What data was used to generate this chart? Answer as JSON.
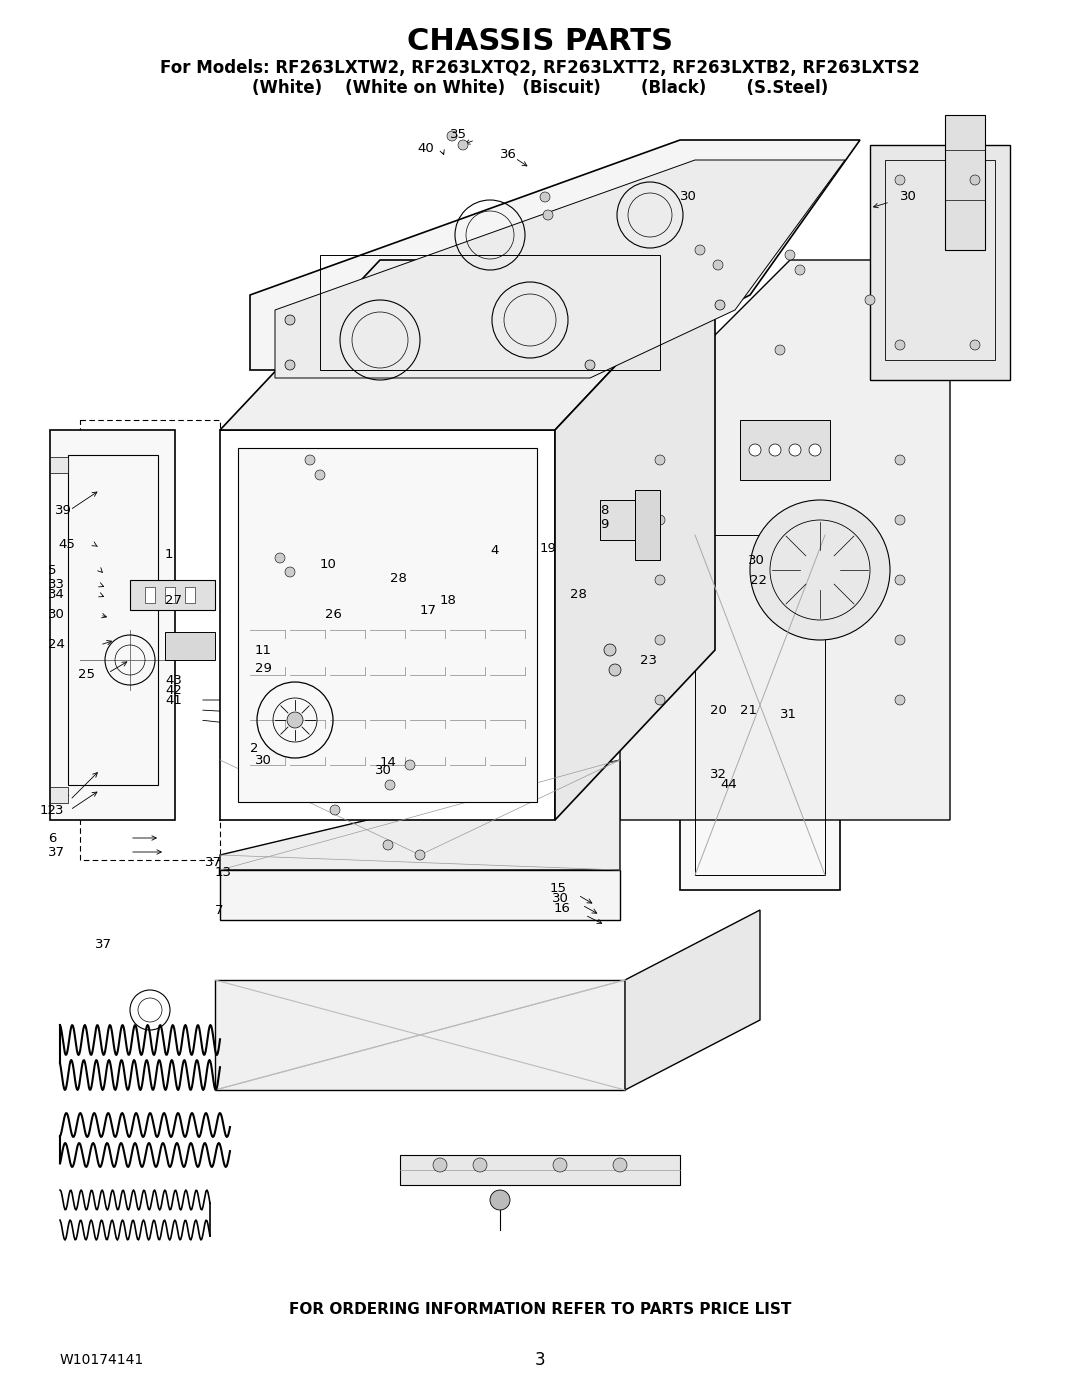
{
  "title": "CHASSIS PARTS",
  "subtitle_line1": "For Models: RF263LXTW2, RF263LXTQ2, RF263LXTT2, RF263LXTB2, RF263LXTS2",
  "subtitle_line2": "(White)    (White on White)   (Biscuit)       (Black)       (S.Steel)",
  "footer_text": "FOR ORDERING INFORMATION REFER TO PARTS PRICE LIST",
  "part_number": "W10174141",
  "page_number": "3",
  "bg_color": "#ffffff",
  "text_color": "#000000",
  "title_fontsize": 20,
  "subtitle_fontsize": 12,
  "footer_fontsize": 10,
  "fig_width": 10.8,
  "fig_height": 13.97,
  "dpi": 100
}
